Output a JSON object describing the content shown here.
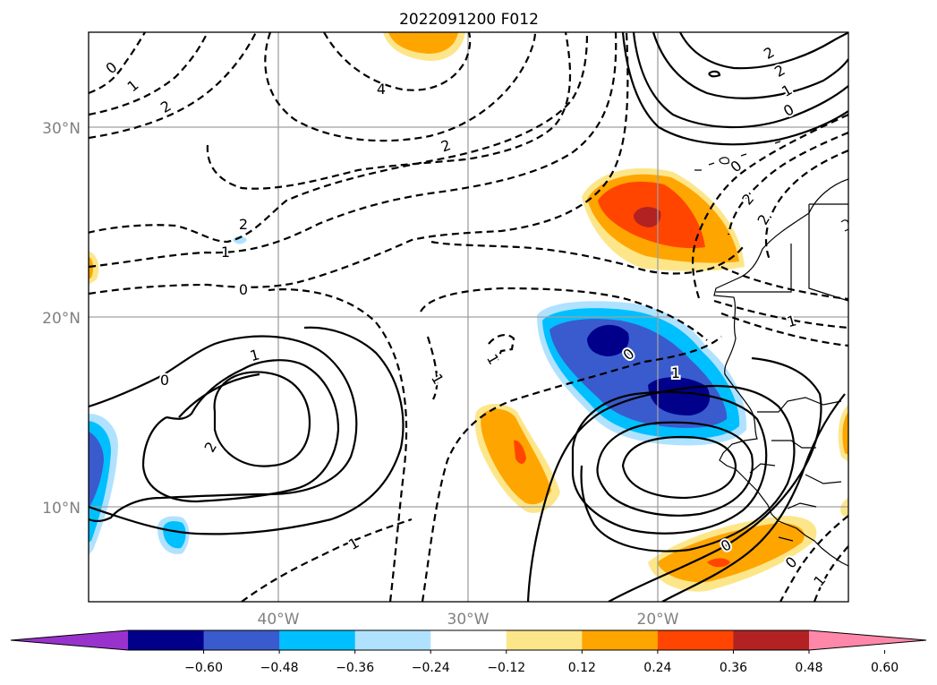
{
  "title": "2022091200 F012",
  "lat_labels": [
    "30°N",
    "20°N",
    "10°N"
  ],
  "lon_labels": [
    "40°W",
    "30°W",
    "20°W"
  ],
  "colorbar": {
    "ticks": [
      "−0.60",
      "−0.48",
      "−0.36",
      "−0.24",
      "−0.12",
      "0.12",
      "0.24",
      "0.36",
      "0.48",
      "0.60"
    ],
    "colors": [
      "#9932cc",
      "#00008b",
      "#3a5bcd",
      "#00bfff",
      "#b0e2ff",
      "#ffffff",
      "#fde68a",
      "#ffa500",
      "#ff4500",
      "#b22222",
      "#ff88aa"
    ]
  },
  "contour_labels": [
    "0",
    "1",
    "2",
    "2",
    "2",
    "1",
    "0",
    "4",
    "2",
    "2",
    "1",
    "0",
    "0",
    "2",
    "2",
    "1",
    "0",
    "1",
    "2",
    "0",
    "1",
    "1",
    "1",
    "0",
    "1",
    "0",
    "1"
  ]
}
